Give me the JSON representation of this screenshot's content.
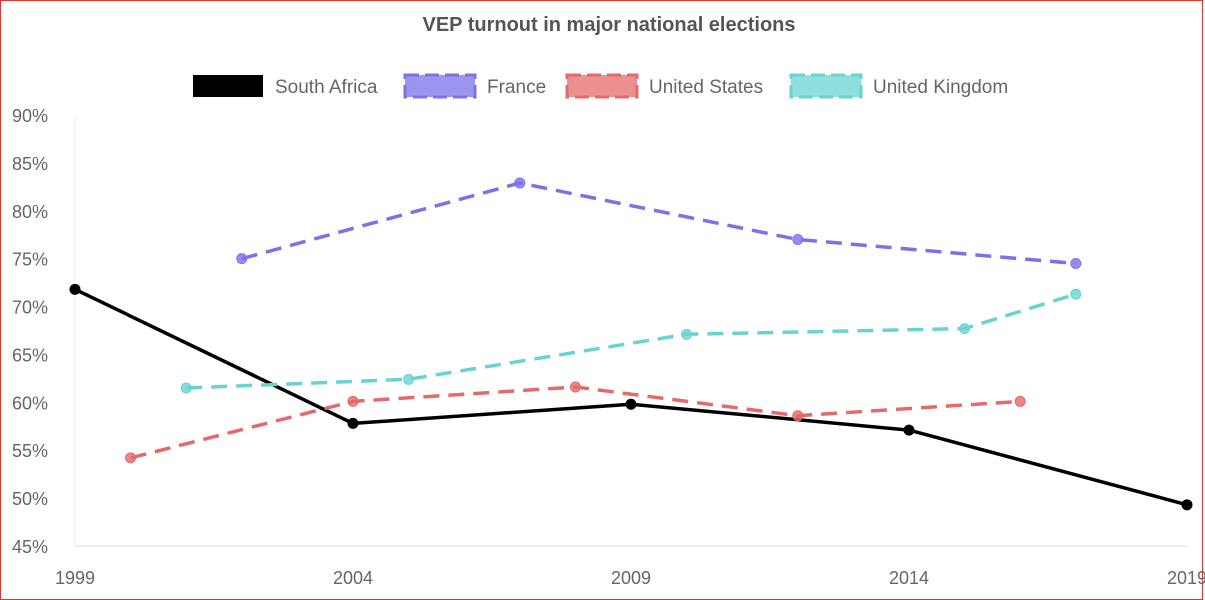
{
  "chart_data": {
    "type": "line",
    "title": "VEP turnout in major national elections",
    "xlabel": "",
    "ylabel": "",
    "xlim": [
      1999,
      2019
    ],
    "ylim": [
      45,
      90
    ],
    "x_ticks": [
      "1999",
      "2004",
      "2009",
      "2014",
      "2019"
    ],
    "y_ticks": [
      "45%",
      "50%",
      "55%",
      "60%",
      "65%",
      "70%",
      "75%",
      "80%",
      "85%",
      "90%"
    ],
    "legend_position": "top",
    "series": [
      {
        "name": "South Africa",
        "color": "#000000",
        "style": "solid",
        "points": [
          {
            "x": 1999,
            "y": 71.8
          },
          {
            "x": 2004,
            "y": 57.8
          },
          {
            "x": 2009,
            "y": 59.8
          },
          {
            "x": 2014,
            "y": 57.1
          },
          {
            "x": 2019,
            "y": 49.3
          }
        ]
      },
      {
        "name": "France",
        "color": "#7b72e9",
        "style": "dashed",
        "points": [
          {
            "x": 2002,
            "y": 75.0
          },
          {
            "x": 2007,
            "y": 82.9
          },
          {
            "x": 2012,
            "y": 77.0
          },
          {
            "x": 2017,
            "y": 74.5
          }
        ]
      },
      {
        "name": "United States",
        "color": "#e46a6a",
        "style": "dashed",
        "points": [
          {
            "x": 2000,
            "y": 54.2
          },
          {
            "x": 2004,
            "y": 60.1
          },
          {
            "x": 2008,
            "y": 61.6
          },
          {
            "x": 2012,
            "y": 58.6
          },
          {
            "x": 2016,
            "y": 60.1
          }
        ]
      },
      {
        "name": "United Kingdom",
        "color": "#68d4d2",
        "style": "dashed",
        "points": [
          {
            "x": 2001,
            "y": 61.5
          },
          {
            "x": 2005,
            "y": 62.4
          },
          {
            "x": 2010,
            "y": 67.1
          },
          {
            "x": 2015,
            "y": 67.7
          },
          {
            "x": 2017,
            "y": 71.3
          }
        ]
      }
    ]
  }
}
